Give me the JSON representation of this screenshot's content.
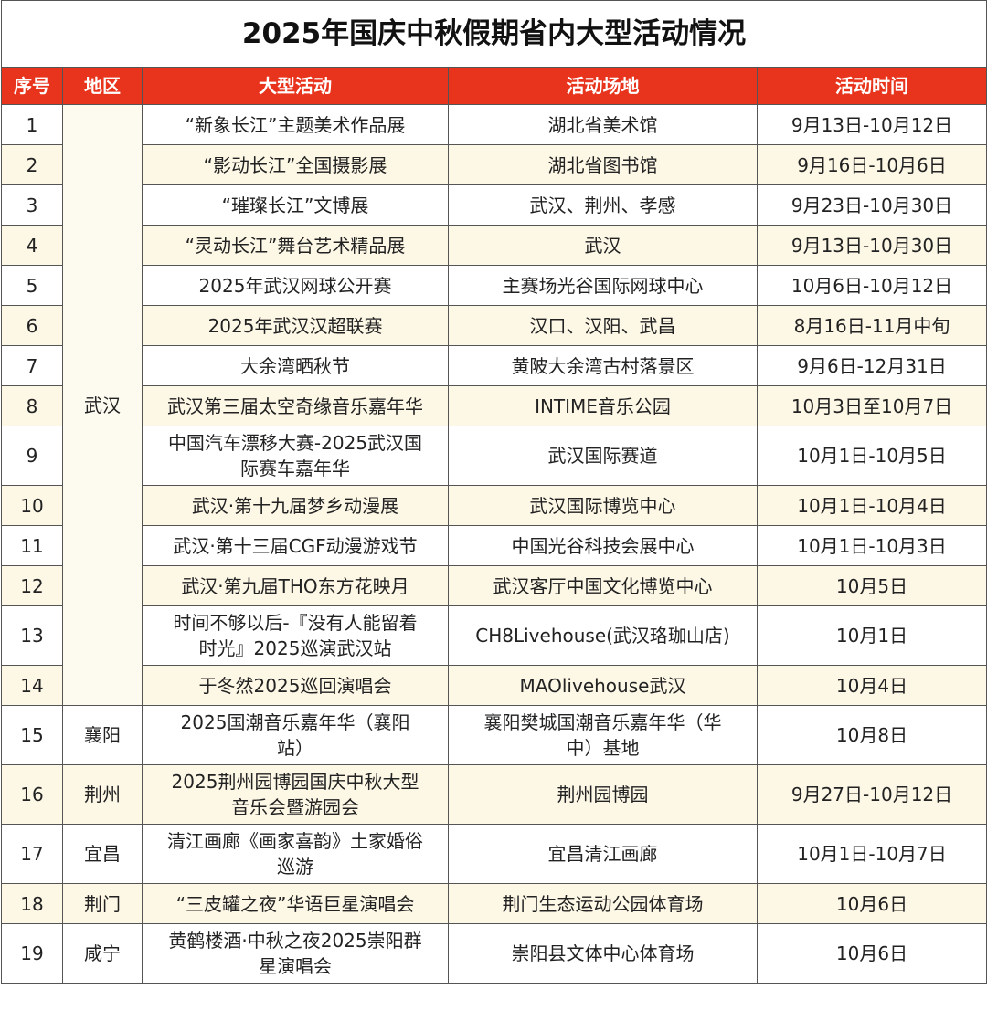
{
  "title": "2025年国庆中秋假期省内大型活动情况",
  "headers": [
    "序号",
    "地区",
    "大型活动",
    "活动场地",
    "活动时间"
  ],
  "colors": {
    "header_bg": "#e8341c",
    "alt_row_bg": "#fdf7e6"
  },
  "rows": [
    {
      "no": "1",
      "region": "武汉",
      "event": "“新象长江”主题美术作品展",
      "venue": "湖北省美术馆",
      "time": "9月13日-10月12日"
    },
    {
      "no": "2",
      "region": "武汉",
      "event": "“影动长江”全国摄影展",
      "venue": "湖北省图书馆",
      "time": "9月16日-10月6日"
    },
    {
      "no": "3",
      "region": "武汉",
      "event": "“璀璨长江”文博展",
      "venue": "武汉、荆州、孝感",
      "time": "9月23日-10月30日"
    },
    {
      "no": "4",
      "region": "武汉",
      "event": "“灵动长江”舞台艺术精品展",
      "venue": "武汉",
      "time": "9月13日-10月30日"
    },
    {
      "no": "5",
      "region": "武汉",
      "event": "2025年武汉网球公开赛",
      "venue": "主赛场光谷国际网球中心",
      "time": "10月6日-10月12日"
    },
    {
      "no": "6",
      "region": "武汉",
      "event": "2025年武汉汉超联赛",
      "venue": "汉口、汉阳、武昌",
      "time": "8月16日-11月中旬"
    },
    {
      "no": "7",
      "region": "武汉",
      "event": "大余湾晒秋节",
      "venue": "黄陂大余湾古村落景区",
      "time": "9月6日-12月31日"
    },
    {
      "no": "8",
      "region": "武汉",
      "event": "武汉第三届太空奇缘音乐嘉年华",
      "venue": "INTIME音乐公园",
      "time": "10月3日至10月7日"
    },
    {
      "no": "9",
      "region": "武汉",
      "event": "中国汽车漂移大赛-2025武汉国\n际赛车嘉年华",
      "venue": "武汉国际赛道",
      "time": "10月1日-10月5日"
    },
    {
      "no": "10",
      "region": "武汉",
      "event": "武汉·第十九届梦乡动漫展",
      "venue": "武汉国际博览中心",
      "time": "10月1日-10月4日"
    },
    {
      "no": "11",
      "region": "武汉",
      "event": "武汉·第十三届CGF动漫游戏节",
      "venue": "中国光谷科技会展中心",
      "time": "10月1日-10月3日"
    },
    {
      "no": "12",
      "region": "武汉",
      "event": "武汉·第九届THO东方花映月",
      "venue": "武汉客厅中国文化博览中心",
      "time": "10月5日"
    },
    {
      "no": "13",
      "region": "武汉",
      "event": "时间不够以后-『没有人能留着\n时光』2025巡演武汉站",
      "venue": "CH8Livehouse(武汉珞珈山店)",
      "time": "10月1日"
    },
    {
      "no": "14",
      "region": "武汉",
      "event": "于冬然2025巡回演唱会",
      "venue": "MAOlivehouse武汉",
      "time": "10月4日"
    },
    {
      "no": "15",
      "region": "襄阳",
      "event": "2025国潮音乐嘉年华（襄阳\n站）",
      "venue": "襄阳樊城国潮音乐嘉年华（华\n中）基地",
      "time": "10月8日"
    },
    {
      "no": "16",
      "region": "荆州",
      "event": "2025荆州园博园国庆中秋大型\n音乐会暨游园会",
      "venue": "荆州园博园",
      "time": "9月27日-10月12日"
    },
    {
      "no": "17",
      "region": "宜昌",
      "event": "清江画廊《画家喜韵》土家婚俗\n巡游",
      "venue": "宜昌清江画廊",
      "time": "10月1日-10月7日"
    },
    {
      "no": "18",
      "region": "荆门",
      "event": "“三皮罐之夜”华语巨星演唱会",
      "venue": "荆门生态运动公园体育场",
      "time": "10月6日"
    },
    {
      "no": "19",
      "region": "咸宁",
      "event": "黄鹤楼酒·中秋之夜2025崇阳群\n星演唱会",
      "venue": "崇阳县文体中心体育场",
      "time": "10月6日"
    }
  ]
}
